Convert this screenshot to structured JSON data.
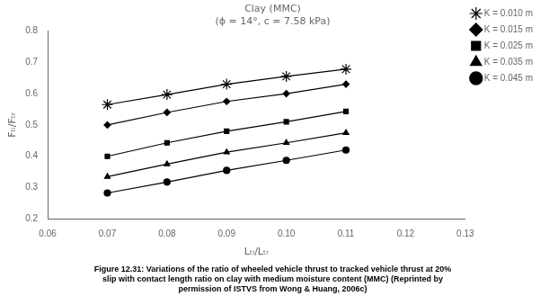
{
  "chart_data": {
    "type": "line",
    "title": "Clay (MMC)",
    "subtitle": "(ϕ = 14°, c = 7.58 kPa)",
    "xlabel": "Lₜᵢ/Lₜᵣ",
    "ylabel": "Fₜᵢ/Fₜᵣ",
    "caption": [
      "Figure 12.31: Variations of the ratio of wheeled vehicle thrust to tracked vehicle thrust at 20%",
      "slip with contact length ratio on clay with medium moisture content (MMC) (Reprinted by",
      "permission of ISTVS from Wong & Huang, 2006c)"
    ],
    "xlim": [
      0.06,
      0.13
    ],
    "ylim": [
      0.2,
      0.8
    ],
    "xticks": [
      0.06,
      0.07,
      0.08,
      0.09,
      {
        "value": 0.1,
        "label": "0.10"
      },
      0.11,
      0.12,
      0.13
    ],
    "yticks": [
      0.2,
      0.3,
      0.4,
      0.5,
      0.6,
      0.7,
      0.8
    ],
    "grid": false,
    "legend": "right",
    "x": [
      0.07,
      0.08,
      0.09,
      0.1,
      0.11
    ],
    "series": [
      {
        "name": "K = 0.010 m",
        "color": "#000000",
        "marker": "star",
        "values": [
          0.565,
          0.597,
          0.63,
          0.655,
          0.678
        ]
      },
      {
        "name": "K = 0.015 m",
        "color": "#000000",
        "marker": "diamond",
        "values": [
          0.5,
          0.54,
          0.575,
          0.6,
          0.63
        ]
      },
      {
        "name": "K = 0.025 m",
        "color": "#000000",
        "marker": "square",
        "values": [
          0.4,
          0.443,
          0.48,
          0.51,
          0.543
        ]
      },
      {
        "name": "K = 0.035 m",
        "color": "#000000",
        "marker": "triangle",
        "values": [
          0.335,
          0.375,
          0.413,
          0.443,
          0.475
        ]
      },
      {
        "name": "K = 0.045 m",
        "color": "#000000",
        "marker": "circle",
        "values": [
          0.283,
          0.318,
          0.355,
          0.387,
          0.42
        ]
      }
    ]
  }
}
